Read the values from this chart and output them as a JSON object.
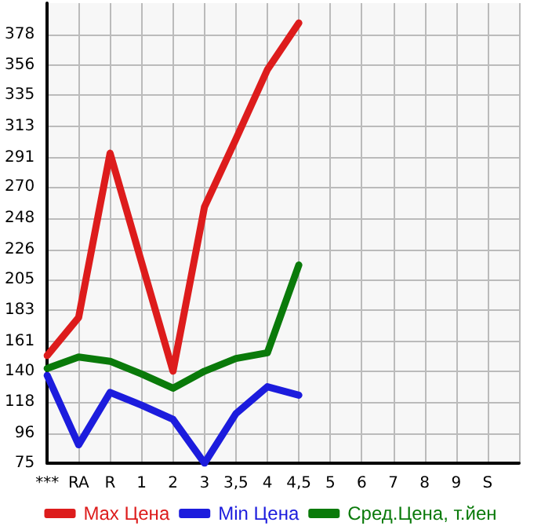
{
  "chart_data": {
    "type": "line",
    "categories": [
      "***",
      "RA",
      "R",
      "1",
      "2",
      "3",
      "3,5",
      "4",
      "4,5",
      "5",
      "6",
      "7",
      "8",
      "9",
      "S",
      null
    ],
    "series": [
      {
        "name": "Max Цена",
        "color": "#dd1c1c",
        "values": [
          151,
          178,
          294,
          217,
          140,
          256,
          304,
          353,
          386,
          null,
          null,
          null,
          null,
          null,
          null,
          null
        ]
      },
      {
        "name": "Min Цена",
        "color": "#1c1cdd",
        "values": [
          137,
          88,
          125,
          116,
          106,
          75,
          110,
          129,
          123,
          null,
          null,
          null,
          null,
          null,
          null,
          null
        ]
      },
      {
        "name": "Сред.Цена, т.йен",
        "color": "#0a7a0a",
        "values": [
          142,
          150,
          147,
          138,
          128,
          140,
          149,
          153,
          215,
          null,
          null,
          null,
          null,
          null,
          null,
          null
        ]
      }
    ],
    "ylim": [
      75,
      400
    ],
    "yticks": [
      75,
      96,
      118,
      140,
      161,
      183,
      205,
      226,
      248,
      270,
      291,
      313,
      335,
      356,
      378
    ],
    "grid": true,
    "legend": "bottom",
    "marker": "none",
    "line_style": "solid"
  }
}
